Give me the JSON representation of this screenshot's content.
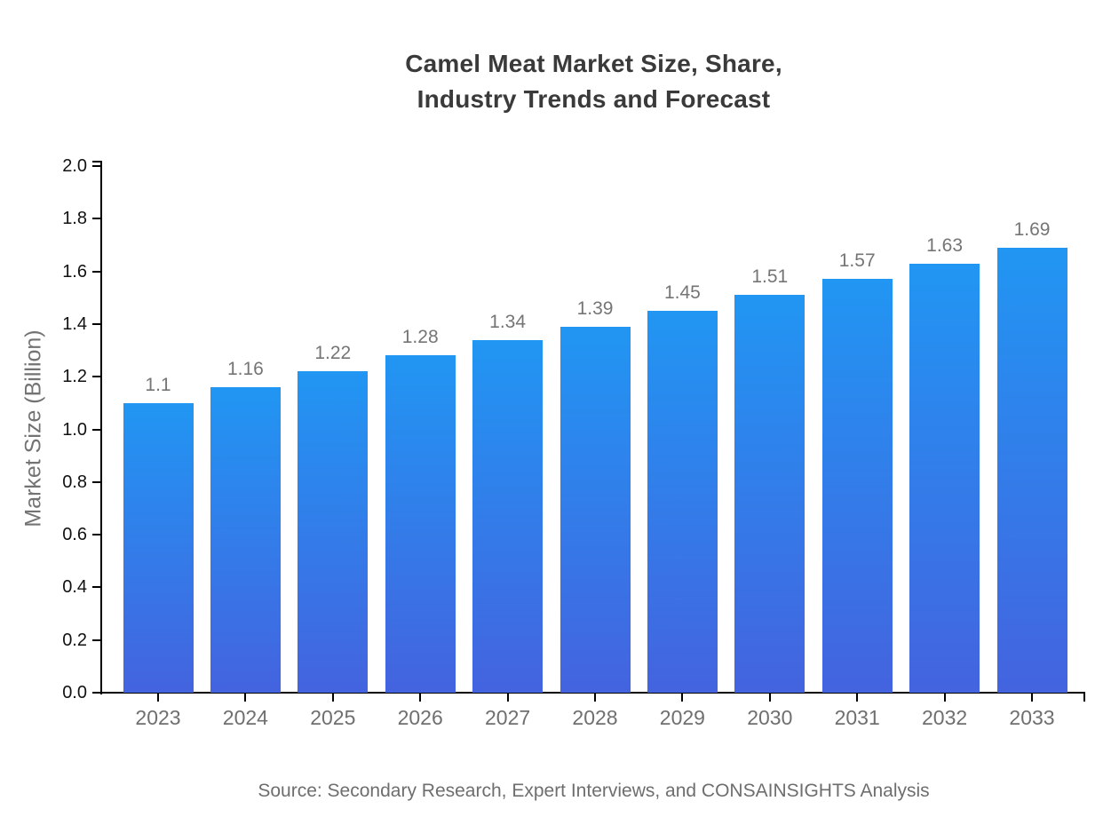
{
  "title": {
    "lines": [
      "Camel Meat Market Size, Share,",
      "Industry Trends and Forecast"
    ]
  },
  "y_axis": {
    "label": "Market Size (Billion)"
  },
  "footer": {
    "source": "Source: Secondary Research, Expert Interviews, and CONSAINSIGHTS Analysis"
  },
  "colors": {
    "bar_gradient_top": "#2196F3",
    "bar_gradient_bottom": "#4463DF",
    "axis": "#000000",
    "title_text": "#3a3a3a",
    "y_tick_text": "#111111",
    "value_label_text": "#757575",
    "category_text": "#6f6f6f",
    "ylabel_text": "#737373",
    "source_text": "#6e6e6e",
    "background": "#ffffff"
  },
  "chart_data": {
    "type": "bar",
    "title": "Camel Meat Market Size, Share, Industry Trends and Forecast",
    "categories": [
      "2023",
      "2024",
      "2025",
      "2026",
      "2027",
      "2028",
      "2029",
      "2030",
      "2031",
      "2032",
      "2033"
    ],
    "values": [
      1.1,
      1.16,
      1.22,
      1.28,
      1.34,
      1.39,
      1.45,
      1.51,
      1.57,
      1.63,
      1.69
    ],
    "value_labels": [
      "1.1",
      "1.16",
      "1.22",
      "1.28",
      "1.34",
      "1.39",
      "1.45",
      "1.51",
      "1.57",
      "1.63",
      "1.69"
    ],
    "xlabel": "",
    "ylabel": "Market Size (Billion)",
    "ylim": [
      0.0,
      2.0
    ],
    "ytick_interval": 0.2,
    "ytick_labels": [
      "0.0",
      "0.2",
      "0.4",
      "0.6",
      "0.8",
      "1.0",
      "1.2",
      "1.4",
      "1.6",
      "1.8",
      "2.0"
    ],
    "grid": false,
    "legend": false,
    "bar_orientation": "vertical"
  }
}
